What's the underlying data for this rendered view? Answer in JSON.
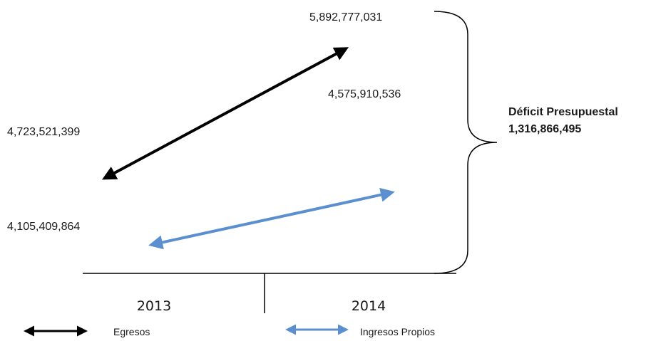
{
  "chart_data": {
    "type": "line",
    "categories": [
      "2013",
      "2014"
    ],
    "series": [
      {
        "name": "Egresos",
        "values": [
          4723521399,
          5892777031
        ],
        "labels": [
          "4,723,521,399",
          "5,892,777,031"
        ],
        "color": "#000000"
      },
      {
        "name": "Ingresos Propios",
        "values": [
          4105409864,
          4575910536
        ],
        "labels": [
          "4,105,409,864",
          "4,575,910,536"
        ],
        "color": "#5b8fd0"
      }
    ],
    "annotation": {
      "title": "Déficit Presupuestal",
      "value": 1316866495,
      "value_label": "1,316,866,495"
    },
    "legend": "bottom",
    "grid": false
  }
}
